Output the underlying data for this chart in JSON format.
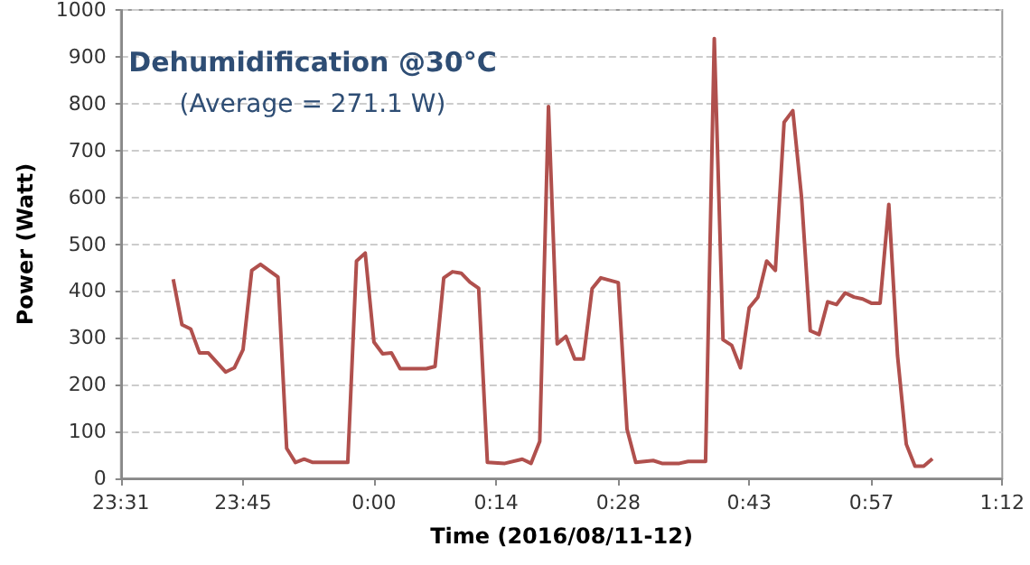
{
  "chart_data": {
    "type": "line",
    "title": "Dehumidification @30°C",
    "subtitle": "(Average = 271.1 W)",
    "xlabel": "Time (2016/08/11-12)",
    "ylabel": "Power (Watt)",
    "x": [
      "2016-08-11T23:37",
      "2016-08-11T23:38",
      "2016-08-11T23:39",
      "2016-08-11T23:40",
      "2016-08-11T23:41",
      "2016-08-11T23:43",
      "2016-08-11T23:44",
      "2016-08-11T23:45",
      "2016-08-11T23:46",
      "2016-08-11T23:47",
      "2016-08-11T23:49",
      "2016-08-11T23:50",
      "2016-08-11T23:51",
      "2016-08-11T23:52",
      "2016-08-11T23:53",
      "2016-08-11T23:57",
      "2016-08-11T23:58",
      "2016-08-11T23:59",
      "2016-08-12T00:00",
      "2016-08-12T00:01",
      "2016-08-12T00:02",
      "2016-08-12T00:03",
      "2016-08-12T00:06",
      "2016-08-12T00:07",
      "2016-08-12T00:08",
      "2016-08-12T00:09",
      "2016-08-12T00:10",
      "2016-08-12T00:11",
      "2016-08-12T00:12",
      "2016-08-12T00:13",
      "2016-08-12T00:15",
      "2016-08-12T00:17",
      "2016-08-12T00:18",
      "2016-08-12T00:19",
      "2016-08-12T00:20",
      "2016-08-12T00:21",
      "2016-08-12T00:22",
      "2016-08-12T00:23",
      "2016-08-12T00:24",
      "2016-08-12T00:25",
      "2016-08-12T00:26",
      "2016-08-12T00:28",
      "2016-08-12T00:29",
      "2016-08-12T00:30",
      "2016-08-12T00:32",
      "2016-08-12T00:33",
      "2016-08-12T00:35",
      "2016-08-12T00:36",
      "2016-08-12T00:38",
      "2016-08-12T00:39",
      "2016-08-12T00:40",
      "2016-08-12T00:41",
      "2016-08-12T00:42",
      "2016-08-12T00:43",
      "2016-08-12T00:44",
      "2016-08-12T00:45",
      "2016-08-12T00:46",
      "2016-08-12T00:47",
      "2016-08-12T00:48",
      "2016-08-12T00:49",
      "2016-08-12T00:50",
      "2016-08-12T00:51",
      "2016-08-12T00:52",
      "2016-08-12T00:53",
      "2016-08-12T00:54",
      "2016-08-12T00:55",
      "2016-08-12T00:56",
      "2016-08-12T00:57",
      "2016-08-12T00:58",
      "2016-08-12T00:59",
      "2016-08-12T01:00",
      "2016-08-12T01:01",
      "2016-08-12T01:02",
      "2016-08-12T01:03",
      "2016-08-12T01:04"
    ],
    "series": [
      {
        "color": "#b0504d",
        "values": [
          425,
          328,
          319,
          268,
          268,
          227,
          236,
          275,
          444,
          457,
          430,
          64,
          34,
          41,
          34,
          34,
          464,
          481,
          291,
          266,
          268,
          234,
          234,
          239,
          428,
          441,
          438,
          419,
          406,
          34,
          32,
          41,
          32,
          79,
          794,
          287,
          303,
          255,
          255,
          405,
          428,
          418,
          105,
          34,
          38,
          32,
          32,
          36,
          36,
          939,
          296,
          284,
          236,
          364,
          387,
          464,
          444,
          760,
          785,
          600,
          315,
          307,
          377,
          371,
          396,
          387,
          383,
          374,
          374,
          585,
          262,
          73,
          26,
          26,
          42
        ]
      }
    ],
    "xlim": [
      "2016-08-11T23:31",
      "2016-08-12T01:12"
    ],
    "xticks": [
      {
        "value": "2016-08-11T23:31",
        "label": "23:31"
      },
      {
        "value": "2016-08-11T23:45",
        "label": "23:45"
      },
      {
        "value": "2016-08-12T00:00",
        "label": "0:00"
      },
      {
        "value": "2016-08-12T00:14",
        "label": "0:14"
      },
      {
        "value": "2016-08-12T00:28",
        "label": "0:28"
      },
      {
        "value": "2016-08-12T00:43",
        "label": "0:43"
      },
      {
        "value": "2016-08-12T00:57",
        "label": "0:57"
      },
      {
        "value": "2016-08-12T01:12",
        "label": "1:12"
      }
    ],
    "ylim": [
      0,
      1000
    ],
    "yticks": [
      0,
      100,
      200,
      300,
      400,
      500,
      600,
      700,
      800,
      900,
      1000
    ],
    "grid": "y",
    "marker": "none",
    "line_style": "solid"
  }
}
